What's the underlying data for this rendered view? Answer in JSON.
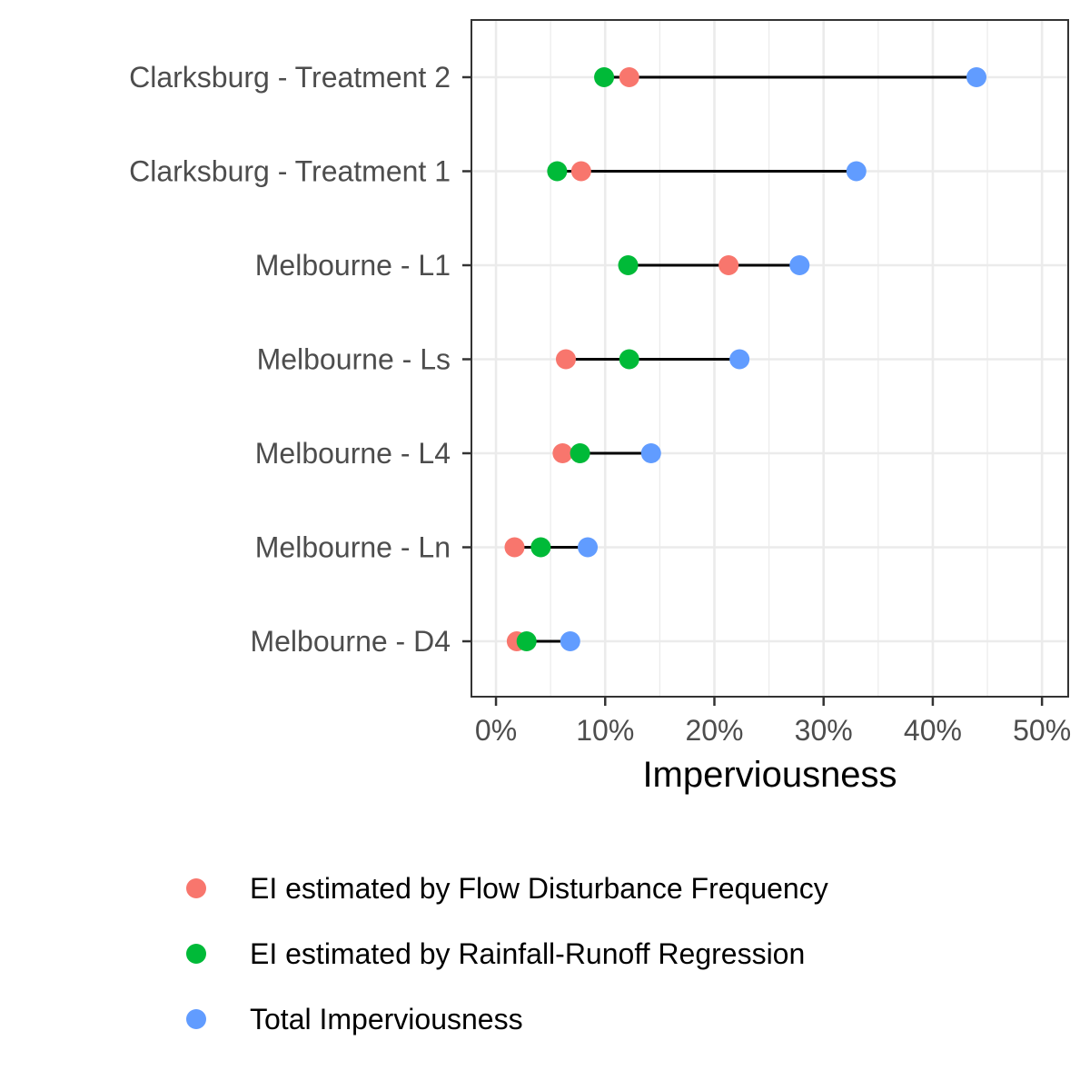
{
  "chart_data": {
    "type": "dumbbell",
    "xlabel": "Imperviousness",
    "ylabel": "",
    "title": "",
    "xlim": [
      -0.0225,
      0.524
    ],
    "x_ticks": [
      "0%",
      "10%",
      "20%",
      "30%",
      "40%",
      "50%"
    ],
    "x_tick_values": [
      0,
      0.1,
      0.2,
      0.3,
      0.4,
      0.5
    ],
    "grid": true,
    "legend_position": "bottom",
    "categories": [
      "Clarksburg - Treatment 2",
      "Clarksburg - Treatment 1",
      "Melbourne - L1",
      "Melbourne - Ls",
      "Melbourne - L4",
      "Melbourne - Ln",
      "Melbourne - D4"
    ],
    "series": [
      {
        "name": "EI estimated by Flow Disturbance Frequency",
        "color": "#F8766D",
        "values": [
          0.122,
          0.078,
          0.213,
          0.064,
          0.061,
          0.017,
          0.019
        ]
      },
      {
        "name": "EI estimated by Rainfall-Runoff Regression",
        "color": "#00BA38",
        "values": [
          0.099,
          0.056,
          0.121,
          0.122,
          0.077,
          0.041,
          0.028
        ]
      },
      {
        "name": "Total Imperviousness",
        "color": "#619CFF",
        "values": [
          0.44,
          0.33,
          0.278,
          0.223,
          0.142,
          0.084,
          0.068
        ]
      }
    ]
  }
}
